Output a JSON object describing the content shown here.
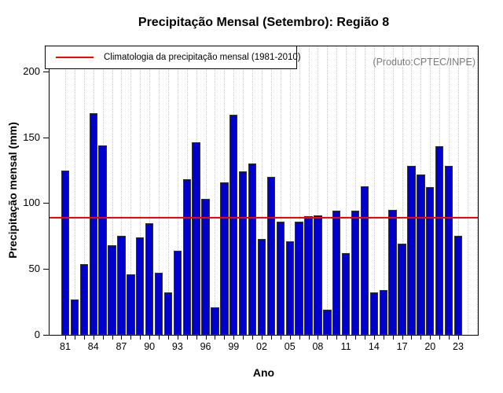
{
  "watermark": {
    "text": "(Produto:CPTEC/INPE)",
    "color": "#7c7c7c"
  },
  "legend": {
    "label": "Climatologia da precipitação mensal (1981-2010)",
    "line_color": "#ff0000",
    "position": "top-left"
  },
  "chart_data": {
    "type": "bar",
    "title": "Precipitação Mensal (Setembro): Região 8",
    "xlabel": "Ano",
    "ylabel": "Precipitação mensal (mm)",
    "ylim": [
      0,
      219
    ],
    "yticks": [
      0,
      50,
      100,
      150,
      200
    ],
    "grid": "vertical-dotted",
    "legend_position": "top-left",
    "bar_color": "#0000cd",
    "bar_border_color": "#333333",
    "climatology": {
      "value": 89,
      "color": "#ff0000"
    },
    "categories": [
      "81",
      "82",
      "83",
      "84",
      "85",
      "86",
      "87",
      "88",
      "89",
      "90",
      "91",
      "92",
      "93",
      "94",
      "95",
      "96",
      "97",
      "98",
      "99",
      "00",
      "01",
      "02",
      "03",
      "04",
      "05",
      "06",
      "07",
      "08",
      "09",
      "10",
      "11",
      "12",
      "13",
      "14",
      "15",
      "16",
      "17",
      "18",
      "19",
      "20",
      "21",
      "22",
      "23"
    ],
    "xtick_labels_shown": [
      "81",
      "84",
      "87",
      "90",
      "93",
      "96",
      "99",
      "02",
      "05",
      "08",
      "11",
      "14",
      "17",
      "20",
      "23"
    ],
    "values": [
      125,
      27,
      54,
      168,
      144,
      68,
      75,
      46,
      74,
      85,
      47,
      32,
      64,
      118,
      146,
      103,
      21,
      116,
      167,
      124,
      130,
      73,
      120,
      86,
      71,
      86,
      90,
      91,
      19,
      94,
      62,
      94,
      113,
      32,
      34,
      95,
      69,
      128,
      122,
      112,
      143,
      128,
      75
    ]
  }
}
